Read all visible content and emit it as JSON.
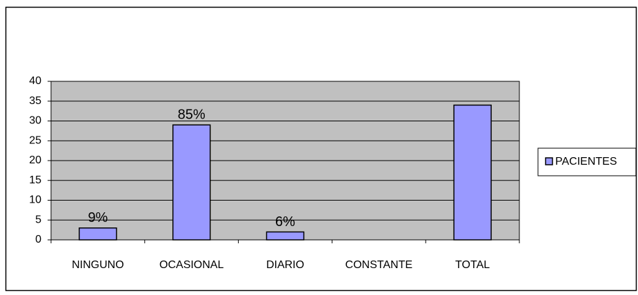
{
  "chart_data": {
    "type": "bar",
    "categories": [
      "NINGUNO",
      "OCASIONAL",
      "DIARIO",
      "CONSTANTE",
      "TOTAL"
    ],
    "series": [
      {
        "name": "PACIENTES",
        "color": "#9999ff",
        "values": [
          3,
          29,
          2,
          0,
          34
        ]
      }
    ],
    "annotations": [
      "9%",
      "85%",
      "6%",
      null,
      null
    ],
    "ylim": [
      0,
      40
    ],
    "yticks": [
      0,
      5,
      10,
      15,
      20,
      25,
      30,
      35,
      40
    ],
    "grid": true,
    "legend": "right",
    "plot_background": "#c0c0c0"
  }
}
